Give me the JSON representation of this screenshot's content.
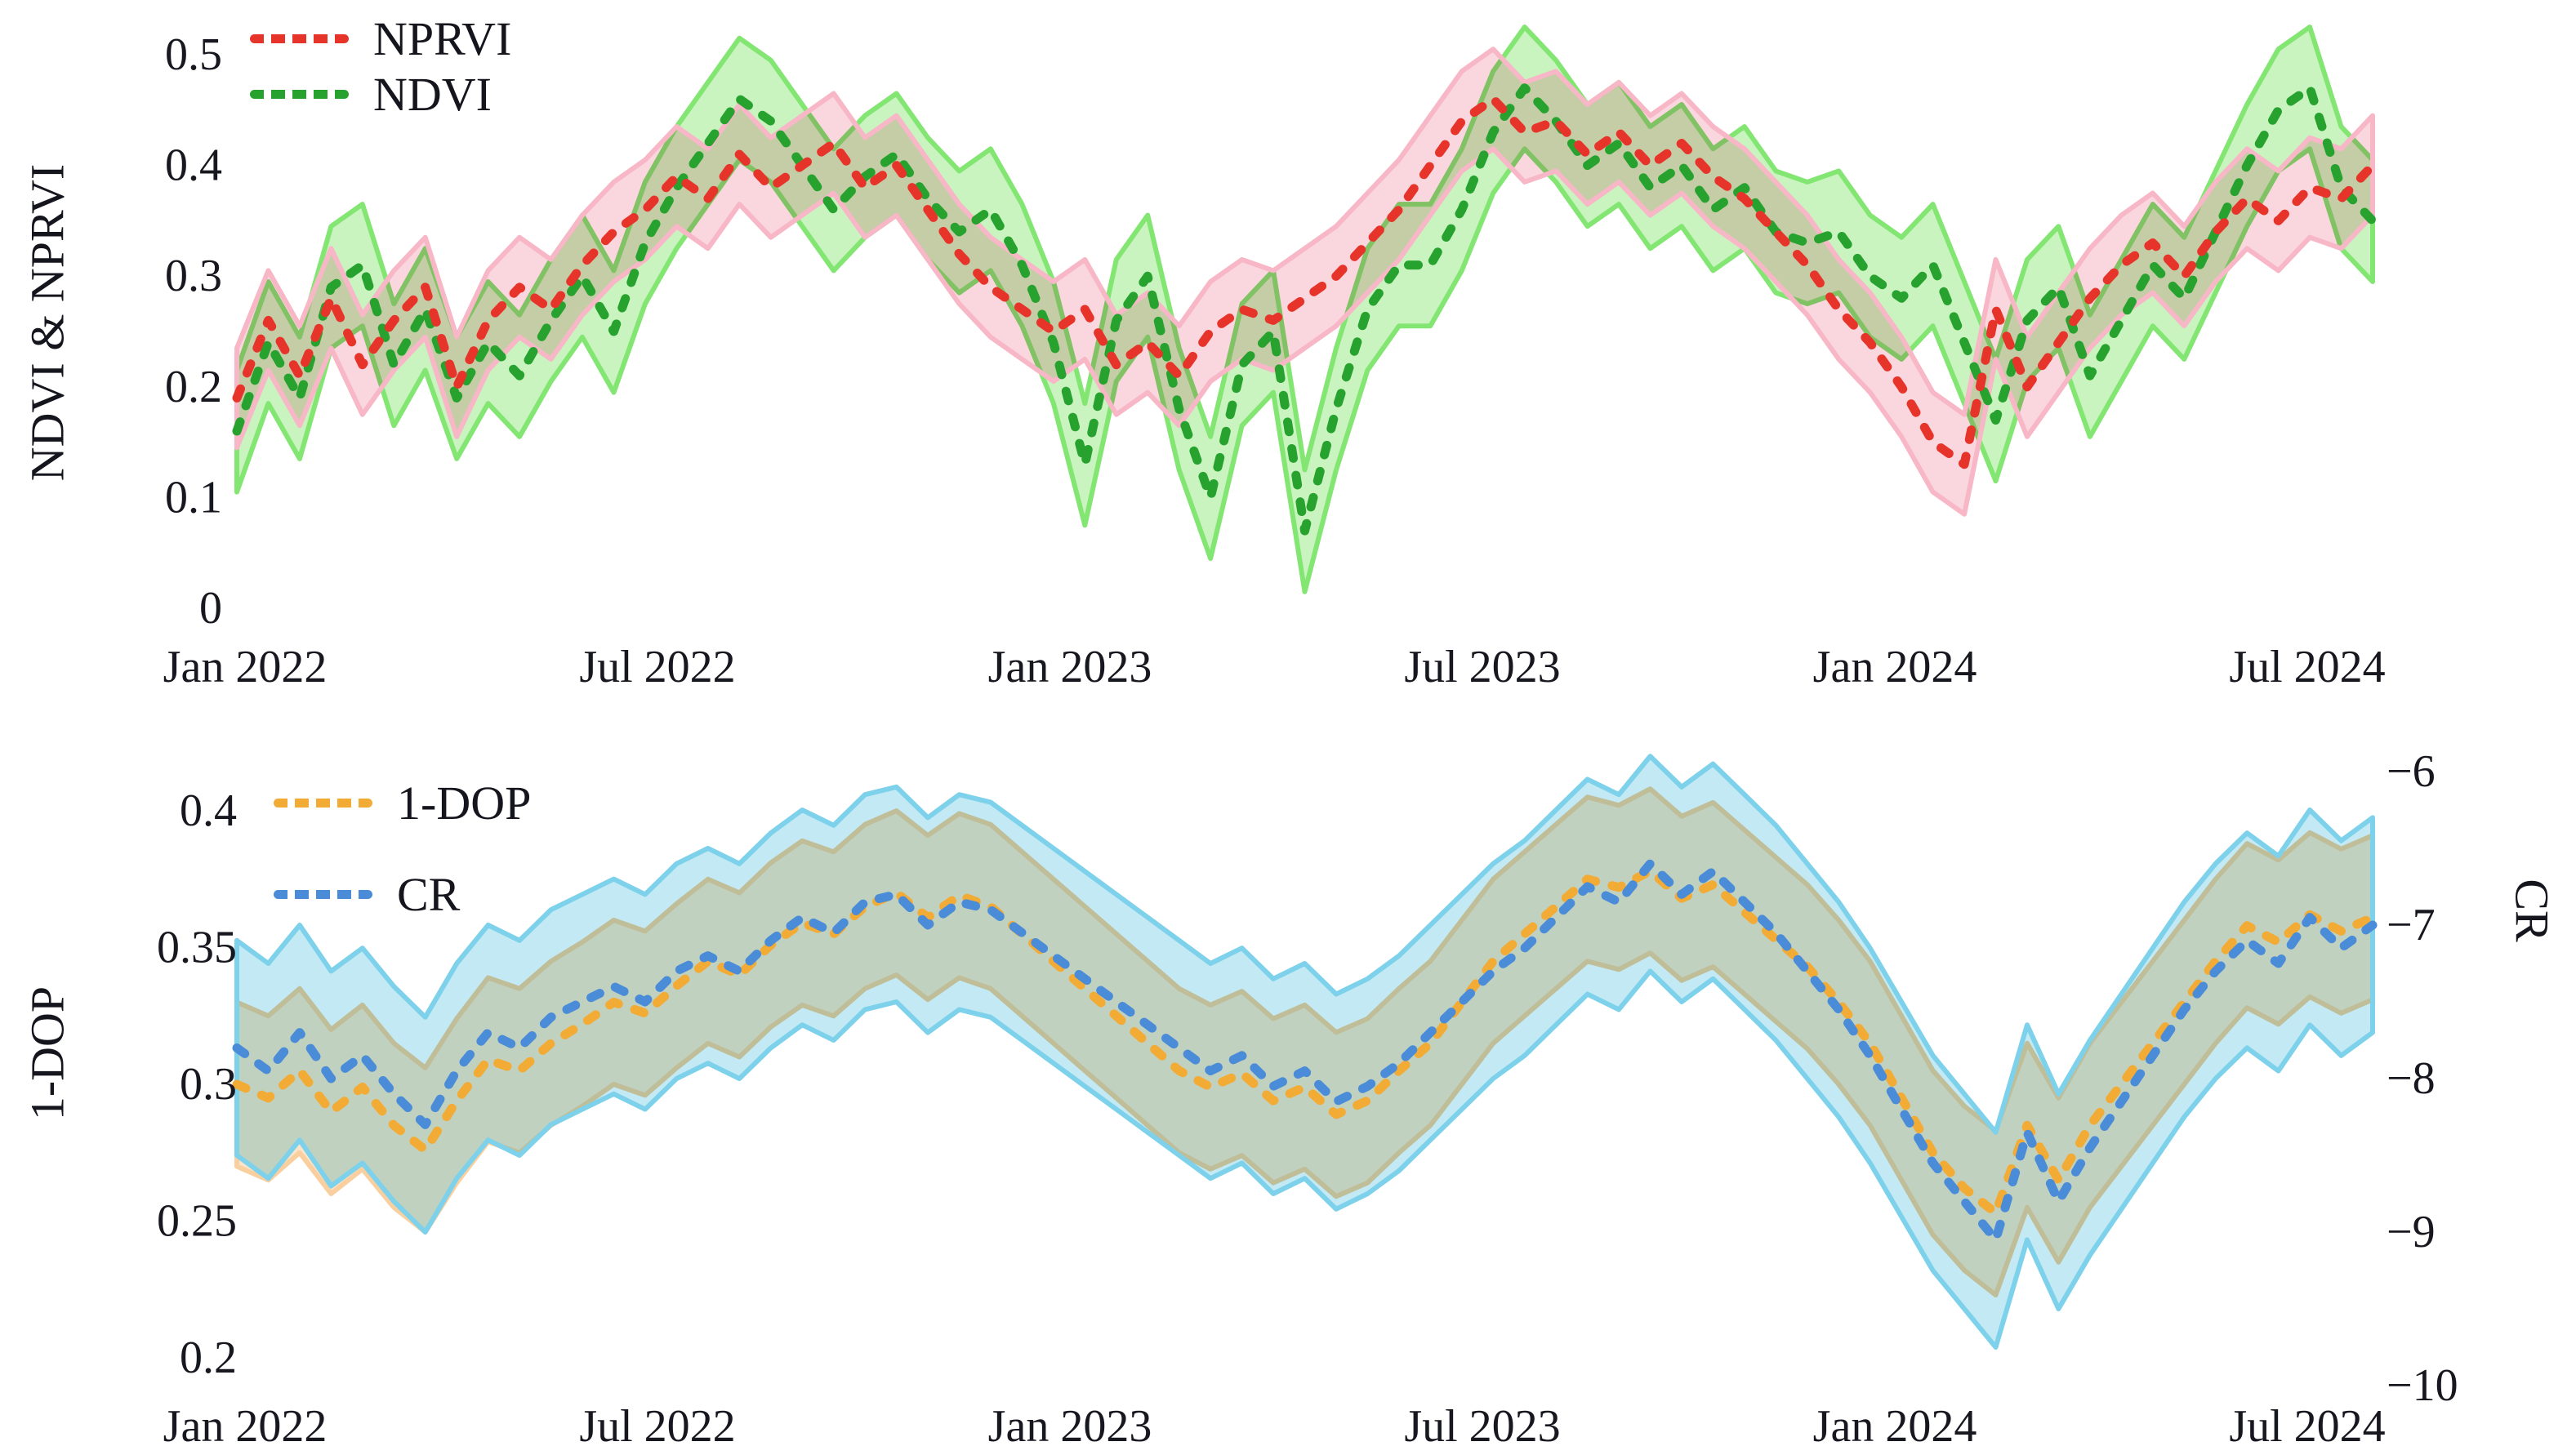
{
  "figure": {
    "background": "#ffffff",
    "text_color": "#17171f"
  },
  "chart_data": [
    {
      "type": "line",
      "id": "vegetation-indices-chart",
      "ylabel": "NDVI & NPRVI",
      "ylim": [
        0,
        0.5
      ],
      "grid": false,
      "legend_position": "top-left",
      "x_tick_labels": [
        "Jan 2022",
        "Jul 2022",
        "Jan 2023",
        "Jul 2023",
        "Jan 2024",
        "Jul 2024"
      ],
      "y_ticks": [
        {
          "v": 0.5,
          "label": "0.5"
        },
        {
          "v": 0.4,
          "label": "0.4"
        },
        {
          "v": 0.3,
          "label": "0.3"
        },
        {
          "v": 0.2,
          "label": "0.2"
        },
        {
          "v": 0.1,
          "label": "0.1"
        },
        {
          "v": 0,
          "label": "0"
        }
      ],
      "series": [
        {
          "name": "NPRVI",
          "axis": "left",
          "line_style": "dotted",
          "color": "#e7342b",
          "band_fill": "#fad7de",
          "band_edge": "#f8b7c6",
          "half_width": 0.045,
          "values": [
            0.19,
            0.26,
            0.21,
            0.28,
            0.22,
            0.26,
            0.29,
            0.2,
            0.26,
            0.29,
            0.27,
            0.31,
            0.34,
            0.36,
            0.39,
            0.37,
            0.41,
            0.38,
            0.4,
            0.42,
            0.38,
            0.4,
            0.36,
            0.32,
            0.29,
            0.27,
            0.25,
            0.27,
            0.22,
            0.24,
            0.21,
            0.25,
            0.27,
            0.26,
            0.28,
            0.3,
            0.33,
            0.36,
            0.4,
            0.44,
            0.46,
            0.43,
            0.44,
            0.41,
            0.43,
            0.4,
            0.42,
            0.39,
            0.37,
            0.34,
            0.31,
            0.27,
            0.24,
            0.2,
            0.15,
            0.13,
            0.27,
            0.2,
            0.24,
            0.28,
            0.31,
            0.33,
            0.3,
            0.34,
            0.37,
            0.35,
            0.38,
            0.37,
            0.4
          ]
        },
        {
          "name": "NDVI",
          "axis": "left",
          "line_style": "dotted",
          "color": "#27a22e",
          "band_fill": "#c9f4bf",
          "band_edge": "#83e673",
          "half_width": 0.055,
          "values": [
            0.16,
            0.24,
            0.19,
            0.29,
            0.31,
            0.22,
            0.27,
            0.19,
            0.24,
            0.21,
            0.26,
            0.3,
            0.25,
            0.33,
            0.38,
            0.42,
            0.46,
            0.44,
            0.4,
            0.36,
            0.39,
            0.41,
            0.37,
            0.34,
            0.36,
            0.31,
            0.24,
            0.13,
            0.26,
            0.3,
            0.18,
            0.1,
            0.22,
            0.25,
            0.07,
            0.18,
            0.27,
            0.31,
            0.31,
            0.36,
            0.43,
            0.47,
            0.44,
            0.4,
            0.42,
            0.38,
            0.4,
            0.36,
            0.38,
            0.34,
            0.33,
            0.34,
            0.3,
            0.28,
            0.31,
            0.24,
            0.17,
            0.26,
            0.29,
            0.21,
            0.26,
            0.31,
            0.28,
            0.34,
            0.4,
            0.45,
            0.47,
            0.38,
            0.35
          ]
        }
      ]
    },
    {
      "type": "line",
      "id": "dop-cr-chart",
      "ylabel_left": "1-DOP",
      "ylabel_right": "CR",
      "ylim_left": [
        0.2,
        0.4
      ],
      "ylim_right": [
        -10,
        -6
      ],
      "grid": false,
      "legend_position": "top-left",
      "x_tick_labels": [
        "Jan 2022",
        "Jul 2022",
        "Jan 2023",
        "Jul 2023",
        "Jan 2024",
        "Jul 2024"
      ],
      "y_ticks_left": [
        {
          "v": 0.4,
          "label": "0.4"
        },
        {
          "v": 0.35,
          "label": "0.35"
        },
        {
          "v": 0.3,
          "label": "0.3"
        },
        {
          "v": 0.25,
          "label": "0.25"
        },
        {
          "v": 0.2,
          "label": "0.2"
        }
      ],
      "y_ticks_right": [
        {
          "v": -6,
          "label": "−6"
        },
        {
          "v": -7,
          "label": "−7"
        },
        {
          "v": -8,
          "label": "−8"
        },
        {
          "v": -9,
          "label": "−9"
        },
        {
          "v": -10,
          "label": "−10"
        }
      ],
      "series": [
        {
          "name": "1-DOP",
          "axis": "left",
          "line_style": "dotted",
          "color": "#f2ab35",
          "band_fill": "#fde4c8",
          "band_edge": "#facfa0",
          "half_width": 0.03,
          "values": [
            0.3,
            0.295,
            0.305,
            0.29,
            0.299,
            0.285,
            0.276,
            0.294,
            0.309,
            0.305,
            0.315,
            0.322,
            0.33,
            0.326,
            0.336,
            0.345,
            0.34,
            0.351,
            0.359,
            0.355,
            0.365,
            0.37,
            0.361,
            0.369,
            0.365,
            0.355,
            0.345,
            0.335,
            0.325,
            0.315,
            0.305,
            0.299,
            0.304,
            0.294,
            0.299,
            0.289,
            0.294,
            0.305,
            0.315,
            0.33,
            0.345,
            0.355,
            0.365,
            0.375,
            0.372,
            0.378,
            0.368,
            0.373,
            0.363,
            0.353,
            0.343,
            0.33,
            0.315,
            0.295,
            0.275,
            0.262,
            0.253,
            0.285,
            0.265,
            0.285,
            0.3,
            0.315,
            0.33,
            0.345,
            0.358,
            0.352,
            0.362,
            0.356,
            0.361
          ]
        },
        {
          "name": "CR",
          "axis": "right",
          "line_style": "dotted",
          "color": "#4a8cd8",
          "band_fill": "#c3eaf4",
          "band_edge": "#7dd1ea",
          "half_width": 0.7,
          "values": [
            -7.8,
            -7.95,
            -7.7,
            -8.0,
            -7.85,
            -8.1,
            -8.3,
            -7.95,
            -7.7,
            -7.8,
            -7.6,
            -7.5,
            -7.4,
            -7.5,
            -7.3,
            -7.2,
            -7.3,
            -7.1,
            -6.95,
            -7.05,
            -6.85,
            -6.8,
            -7.0,
            -6.85,
            -6.9,
            -7.05,
            -7.2,
            -7.35,
            -7.5,
            -7.65,
            -7.8,
            -7.95,
            -7.85,
            -8.05,
            -7.95,
            -8.15,
            -8.05,
            -7.9,
            -7.7,
            -7.5,
            -7.3,
            -7.15,
            -6.95,
            -6.75,
            -6.85,
            -6.6,
            -6.8,
            -6.65,
            -6.85,
            -7.05,
            -7.3,
            -7.55,
            -7.85,
            -8.2,
            -8.55,
            -8.8,
            -9.05,
            -8.35,
            -8.8,
            -8.45,
            -8.15,
            -7.85,
            -7.55,
            -7.3,
            -7.1,
            -7.25,
            -6.95,
            -7.15,
            -7.0
          ]
        }
      ]
    }
  ]
}
